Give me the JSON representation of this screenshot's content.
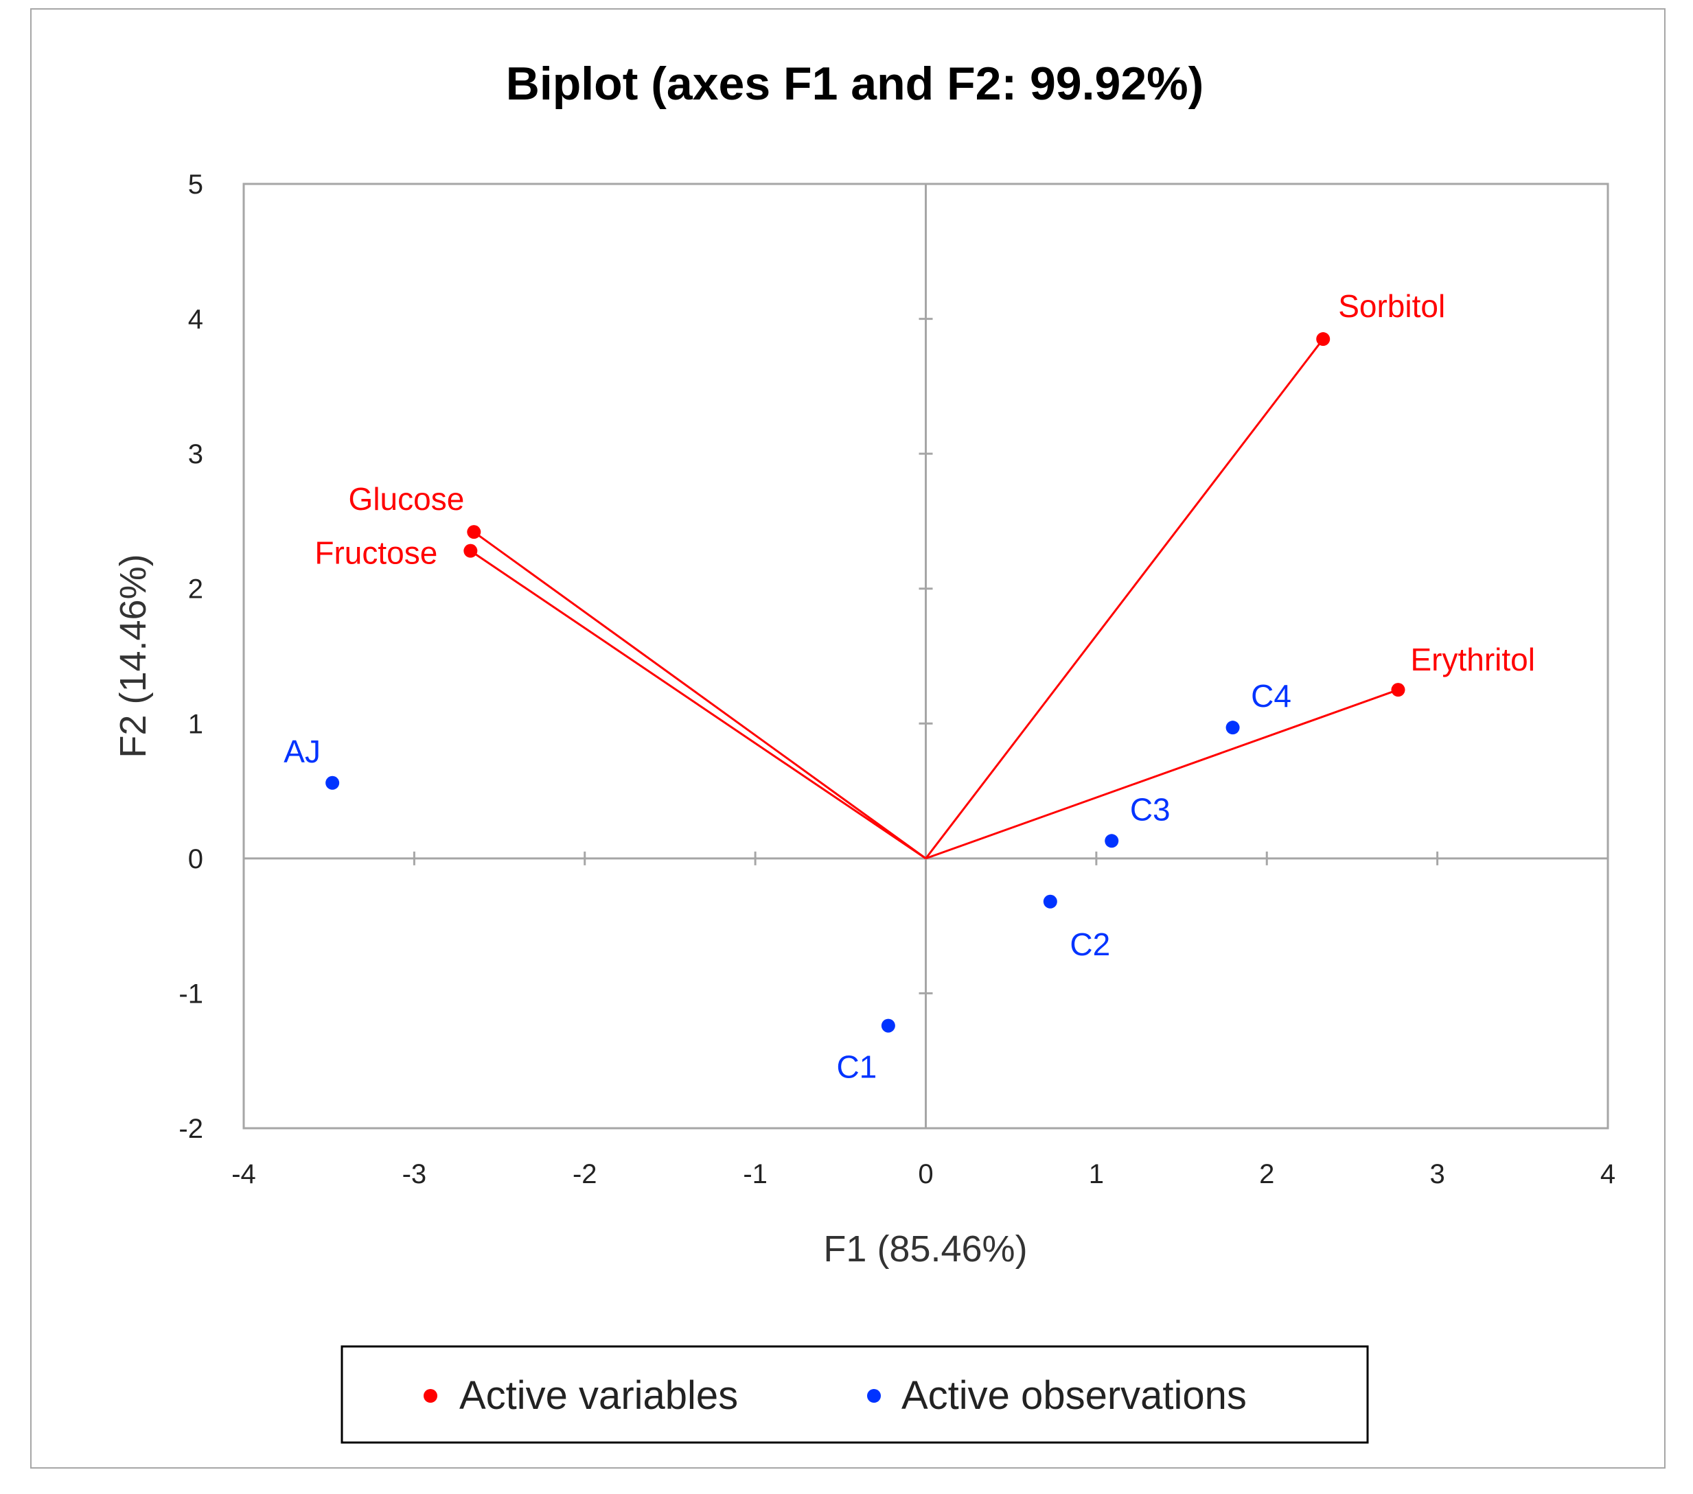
{
  "chart_data": {
    "type": "scatter",
    "title": "Biplot (axes F1 and F2: 99.92%)",
    "xlabel": "F1 (85.46%)",
    "ylabel": "F2 (14.46%)",
    "xlim": [
      -4,
      4
    ],
    "ylim": [
      -2,
      5
    ],
    "x_ticks": [
      "-4",
      "-3",
      "-2",
      "-1",
      "0",
      "1",
      "2",
      "3",
      "4"
    ],
    "y_ticks": [
      "-2",
      "-1",
      "0",
      "1",
      "2",
      "3",
      "4",
      "5"
    ],
    "colors": {
      "variables": "#ff0000",
      "observations": "#0033ff",
      "axes": "#a6a6a6"
    },
    "legend": {
      "position": "bottom",
      "items": [
        {
          "label": "Active variables",
          "color": "#ff0000"
        },
        {
          "label": "Active observations",
          "color": "#0033ff"
        }
      ]
    },
    "series": [
      {
        "name": "Active variables",
        "kind": "vectors",
        "points": [
          {
            "label": "Glucose",
            "x": -2.65,
            "y": 2.42
          },
          {
            "label": "Fructose",
            "x": -2.67,
            "y": 2.28
          },
          {
            "label": "Sorbitol",
            "x": 2.33,
            "y": 3.85
          },
          {
            "label": "Erythritol",
            "x": 2.77,
            "y": 1.25
          }
        ]
      },
      {
        "name": "Active observations",
        "kind": "points",
        "points": [
          {
            "label": "AJ",
            "x": -3.48,
            "y": 0.56
          },
          {
            "label": "C1",
            "x": -0.22,
            "y": -1.24
          },
          {
            "label": "C2",
            "x": 0.73,
            "y": -0.32
          },
          {
            "label": "C3",
            "x": 1.09,
            "y": 0.13
          },
          {
            "label": "C4",
            "x": 1.8,
            "y": 0.97
          }
        ]
      }
    ]
  }
}
